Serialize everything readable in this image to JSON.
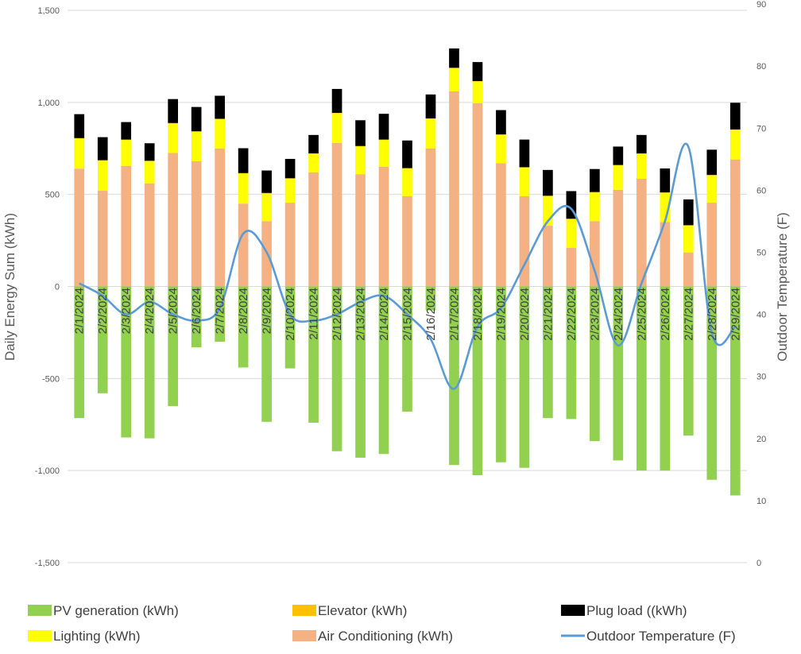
{
  "chart_data": {
    "type": "bar",
    "stacked": true,
    "title": "",
    "ylabel": "Daily Energy Sum (kWh)",
    "y2label": "Outdoor Temperature (F)",
    "ylim": [
      -1500,
      1500
    ],
    "y2lim": [
      0,
      95
    ],
    "yticks": [
      "1,500",
      "1,000",
      "500",
      "0",
      "-500",
      "-1,000",
      "-1,500"
    ],
    "y2ticks": [
      "90",
      "80",
      "70",
      "60",
      "50",
      "40",
      "30",
      "20",
      "10",
      "0"
    ],
    "grid": true,
    "legend_position": "bottom",
    "categories": [
      "2/1/2024",
      "2/2/2024",
      "2/3/2024",
      "2/4/2024",
      "2/5/2024",
      "2/6/2024",
      "2/7/2024",
      "2/8/2024",
      "2/9/2024",
      "2/10/2024",
      "2/11/2024",
      "2/12/2024",
      "2/13/2024",
      "2/14/2024",
      "2/15/2024",
      "2/16/2024",
      "2/17/2024",
      "2/18/2024",
      "2/19/2024",
      "2/20/2024",
      "2/21/2024",
      "2/22/2024",
      "2/23/2024",
      "2/24/2024",
      "2/25/2024",
      "2/26/2024",
      "2/27/2024",
      "2/28/2024",
      "2/29/2024"
    ],
    "series": [
      {
        "name": "PV generation (kWh)",
        "color": "#92D050",
        "kind": "bar",
        "values": [
          -715,
          -580,
          -820,
          -825,
          -650,
          -330,
          -300,
          -440,
          -735,
          -445,
          -740,
          -895,
          -930,
          -910,
          -680,
          -130,
          -970,
          -1025,
          -955,
          -985,
          -715,
          -720,
          -840,
          -945,
          -1000,
          -1000,
          -810,
          -1050,
          -1135
        ]
      },
      {
        "name": "Air Conditioning (kWh)",
        "color": "#F4B183",
        "kind": "bar",
        "values": [
          640,
          520,
          655,
          560,
          725,
          680,
          750,
          450,
          355,
          455,
          620,
          780,
          610,
          650,
          490,
          750,
          1060,
          995,
          670,
          490,
          330,
          210,
          355,
          525,
          585,
          350,
          185,
          455,
          690
        ]
      },
      {
        "name": "Lighting (kWh)",
        "color": "#FFFF00",
        "kind": "bar",
        "values": [
          163,
          163,
          140,
          120,
          160,
          160,
          158,
          163,
          150,
          130,
          100,
          160,
          150,
          145,
          150,
          160,
          125,
          118,
          153,
          155,
          160,
          155,
          155,
          132,
          135,
          158,
          145,
          148,
          160
        ]
      },
      {
        "name": "Elevator (kWh)",
        "color": "#FFC000",
        "kind": "bar",
        "values": [
          3,
          3,
          3,
          3,
          3,
          3,
          3,
          3,
          3,
          3,
          3,
          3,
          3,
          3,
          3,
          3,
          3,
          3,
          3,
          3,
          3,
          3,
          3,
          3,
          3,
          3,
          3,
          3,
          3
        ]
      },
      {
        "name": "Plug load ((kWh)",
        "color": "#000000",
        "kind": "bar",
        "values": [
          130,
          125,
          95,
          95,
          130,
          132,
          125,
          135,
          122,
          105,
          100,
          130,
          140,
          140,
          150,
          130,
          105,
          103,
          132,
          150,
          140,
          150,
          125,
          100,
          100,
          130,
          140,
          137,
          145
        ]
      },
      {
        "name": "Outdoor Temperature (F)",
        "color": "#5B9BD5",
        "kind": "line",
        "axis": "right",
        "values": [
          45,
          43,
          40,
          42,
          40,
          39,
          41,
          53,
          50,
          40,
          39,
          40,
          42,
          43,
          40,
          36,
          28,
          38,
          41,
          48,
          55,
          57,
          47,
          35,
          45,
          55,
          67,
          37,
          38
        ]
      }
    ]
  }
}
